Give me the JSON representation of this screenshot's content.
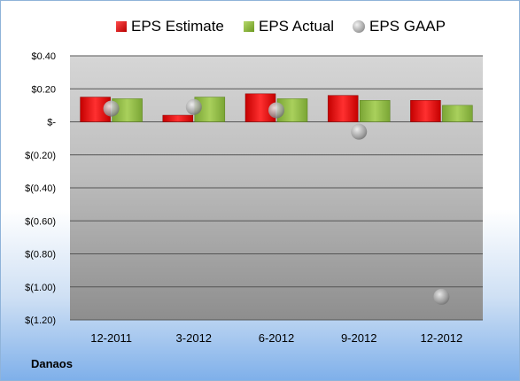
{
  "company": "Danaos",
  "legend": {
    "estimate": "EPS Estimate",
    "actual": "EPS Actual",
    "gaap": "EPS GAAP"
  },
  "colors": {
    "estimate": "#e02020",
    "actual": "#8dbb3f",
    "gaap": "#a8a8a8"
  },
  "chart_data": {
    "type": "bar",
    "categories": [
      "12-2011",
      "3-2012",
      "6-2012",
      "9-2012",
      "12-2012"
    ],
    "series": [
      {
        "name": "EPS Estimate",
        "values": [
          0.15,
          0.04,
          0.17,
          0.16,
          0.13
        ]
      },
      {
        "name": "EPS Actual",
        "values": [
          0.14,
          0.15,
          0.14,
          0.13,
          0.1
        ]
      },
      {
        "name": "EPS GAAP",
        "marker": "circle",
        "values": [
          0.08,
          0.09,
          0.07,
          -0.06,
          -1.06
        ]
      }
    ],
    "yticks": [
      "$0.40",
      "$0.20",
      "$-",
      "$(0.20)",
      "$(0.40)",
      "$(0.60)",
      "$(0.80)",
      "$(1.00)",
      "$(1.20)"
    ],
    "ytick_values": [
      0.4,
      0.2,
      0,
      -0.2,
      -0.4,
      -0.6,
      -0.8,
      -1.0,
      -1.2
    ],
    "ylim": [
      -1.2,
      0.4
    ],
    "grid": true,
    "legend_position": "top"
  }
}
